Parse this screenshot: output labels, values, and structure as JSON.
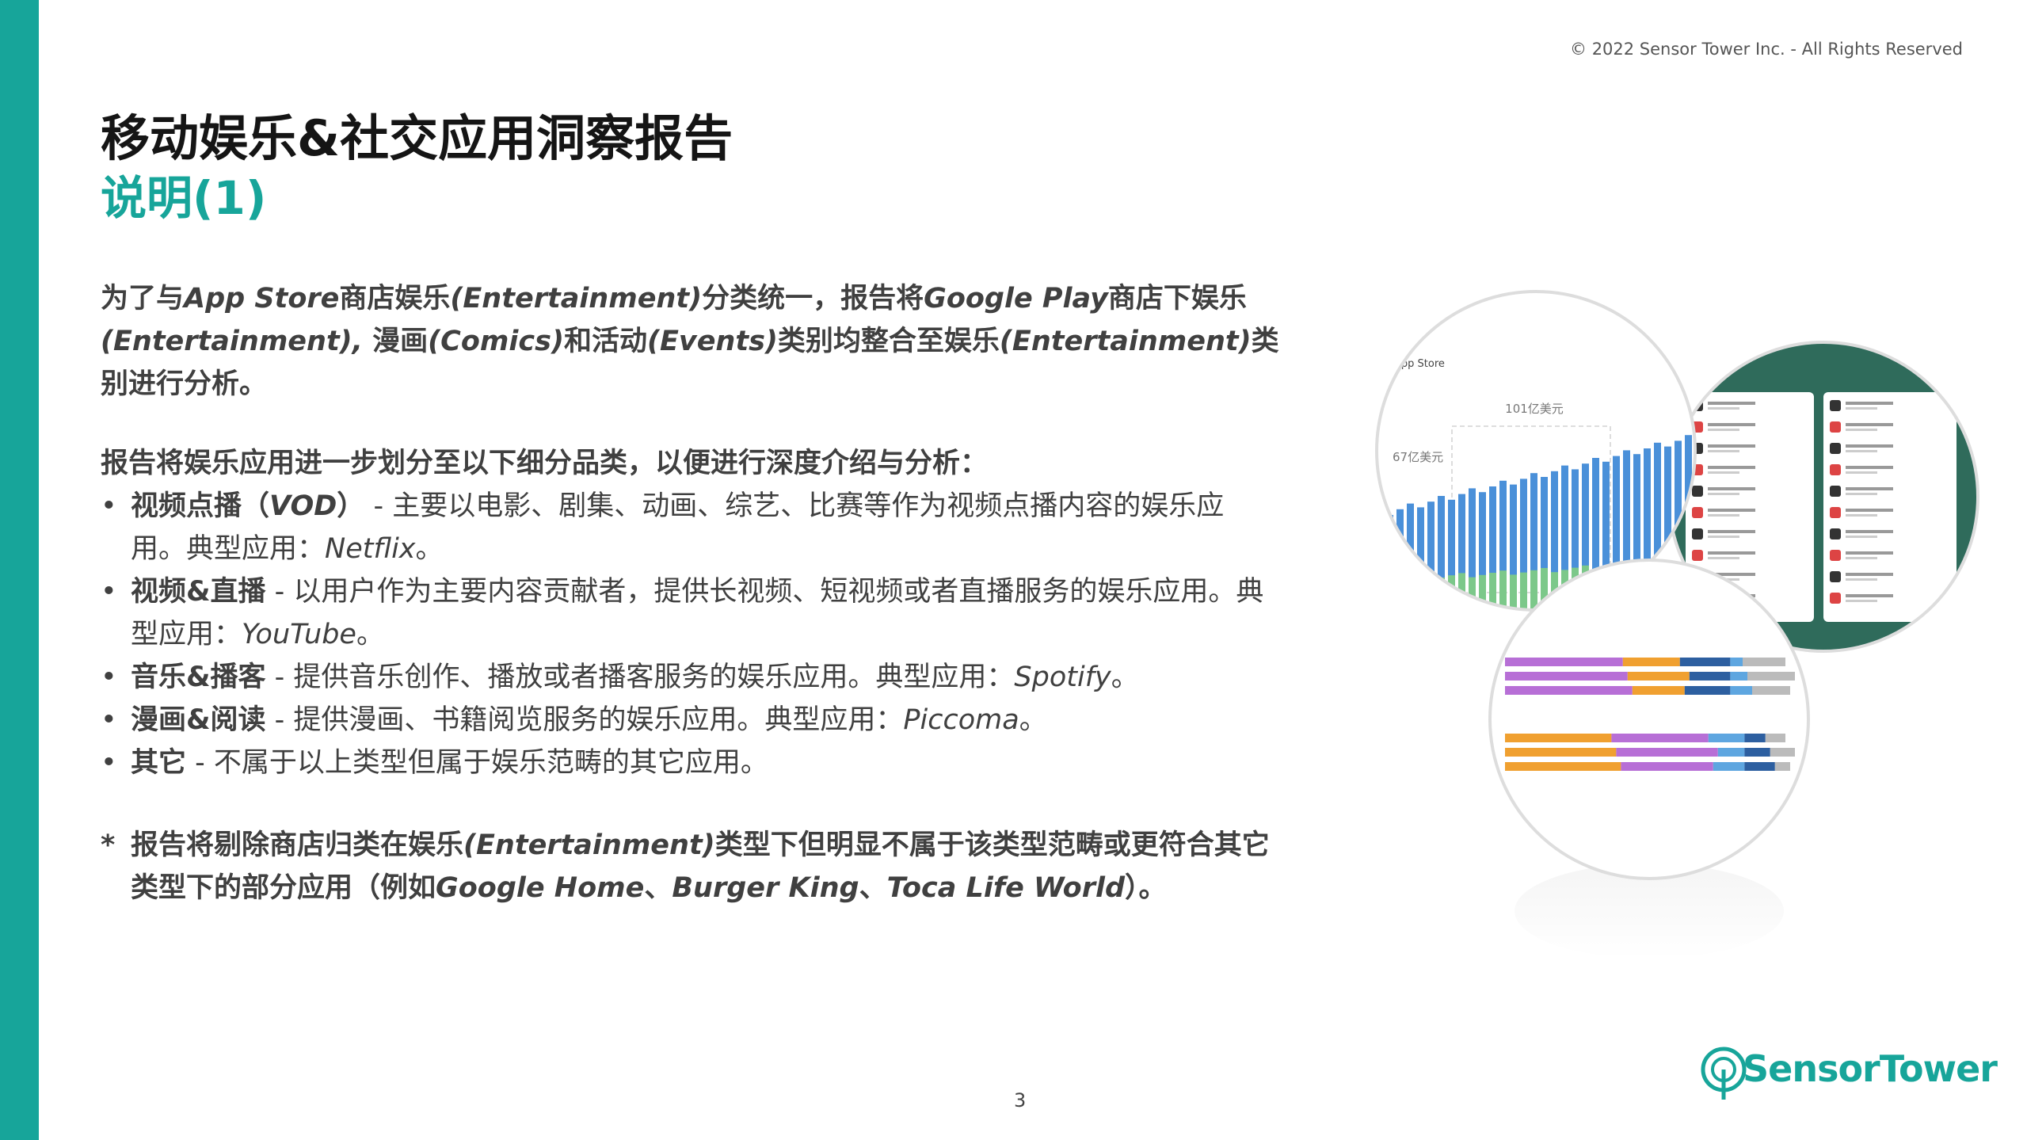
{
  "header": {
    "copyright": "© 2022 Sensor Tower Inc. - All Rights Reserved",
    "title": "移动娱乐&社交应用洞察报告",
    "subtitle": "说明(1)"
  },
  "intro": [
    "为了与",
    "App Store",
    "商店娱乐",
    "(Entertainment)",
    "分类统一，报告将",
    "Google Play",
    "商店下娱乐",
    "(Entertainment),",
    "漫画",
    "(Comics)",
    "和活动",
    "(Events)",
    "类别均整合至娱乐",
    "(Entertainment)",
    "类别进行分析。"
  ],
  "lead": "报告将娱乐应用进一步划分至以下细分品类，以便进行深度介绍与分析：",
  "bullets": [
    [
      "视频点播（",
      "VOD",
      "）",
      " - 主要以电影、剧集、动画、综艺、比赛等作为视频点播内容的娱乐应用。典型应用：",
      "Netflix",
      "。"
    ],
    [
      "视频&直播",
      " - 以用户作为主要内容贡献者，提供长视频、短视频或者直播服务的娱乐应用。典型应用：",
      "YouTube",
      "。"
    ],
    [
      "音乐&播客",
      " - 提供音乐创作、播放或者播客服务的娱乐应用。典型应用：",
      "Spotify",
      "。"
    ],
    [
      "漫画&阅读",
      " - 提供漫画、书籍阅览服务的娱乐应用。典型应用：",
      "Piccoma",
      "。"
    ],
    [
      "其它",
      " - 不属于以上类型但属于娱乐范畴的其它应用。"
    ]
  ],
  "note": {
    "marker": "*",
    "text": [
      "报告将剔除商店归类在娱乐",
      "(Entertainment)",
      "类型下但明显不属于该类型范畴或更符合其它类型下的部分应用（例如",
      "Google Home",
      "、",
      "Burger King",
      "、",
      "Toca Life World",
      "）。"
    ]
  },
  "figure": {
    "store": "App Store",
    "high": "101亿美元",
    "low": "67亿美元"
  },
  "footer": {
    "page": "3",
    "logo": "SensorTower"
  }
}
